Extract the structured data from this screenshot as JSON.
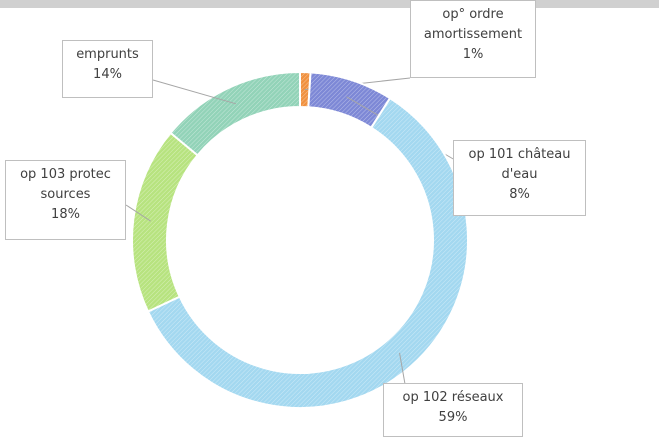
{
  "chart_data": {
    "type": "donut",
    "categories": [
      "op° ordre amortissement",
      "op 101 château d'eau",
      "op 102 réseaux",
      "op 103 protec sources",
      "emprunts"
    ],
    "values": [
      1,
      8,
      59,
      18,
      14
    ],
    "value_labels": [
      "1%",
      "8%",
      "59%",
      "18%",
      "14%"
    ],
    "colors": [
      "#f0913f",
      "#7d88d6",
      "#a3d8f0",
      "#b7e37f",
      "#92d3b8"
    ]
  }
}
